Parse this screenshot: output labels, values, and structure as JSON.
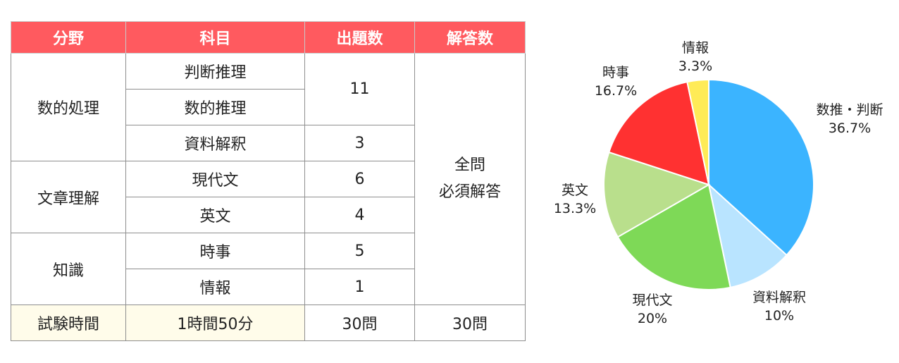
{
  "table": {
    "headers": {
      "field": "分野",
      "subject": "科目",
      "count": "出題数",
      "answer": "解答数"
    },
    "groups": [
      {
        "field": "数的処理",
        "rows": [
          {
            "subject": "判断推理"
          },
          {
            "subject": "数的推理"
          },
          {
            "subject": "資料解釈",
            "count": "3"
          }
        ],
        "merged_count": "11"
      },
      {
        "field": "文章理解",
        "rows": [
          {
            "subject": "現代文",
            "count": "6"
          },
          {
            "subject": "英文",
            "count": "4"
          }
        ]
      },
      {
        "field": "知識",
        "rows": [
          {
            "subject": "時事",
            "count": "5"
          },
          {
            "subject": "情報",
            "count": "1"
          }
        ]
      }
    ],
    "answer_note_line1": "全問",
    "answer_note_line2": "必須解答",
    "footer": {
      "label": "試験時間",
      "duration": "1時間50分",
      "count": "30問",
      "answer": "30問"
    }
  },
  "chart_data": {
    "type": "pie",
    "title": "",
    "slices": [
      {
        "label": "数推・判断",
        "value": 36.7,
        "value_label": "36.7%",
        "color": "#3bb4ff"
      },
      {
        "label": "資料解釈",
        "value": 10,
        "value_label": "10%",
        "color": "#b9e4ff"
      },
      {
        "label": "現代文",
        "value": 20,
        "value_label": "20%",
        "color": "#7ed957"
      },
      {
        "label": "英文",
        "value": 13.3,
        "value_label": "13.3%",
        "color": "#b9df8c"
      },
      {
        "label": "時事",
        "value": 16.7,
        "value_label": "16.7%",
        "color": "#ff3131"
      },
      {
        "label": "情報",
        "value": 3.3,
        "value_label": "3.3%",
        "color": "#ffeb57"
      }
    ],
    "start": "top",
    "direction": "clockwise"
  }
}
